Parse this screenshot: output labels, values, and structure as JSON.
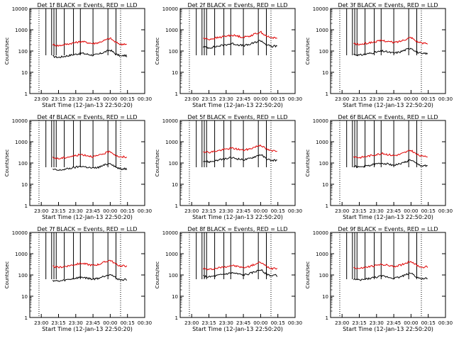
{
  "figure": {
    "description_time_label": "Start Time (12-Jan-13 22:50:20)"
  },
  "chart_data": [
    {
      "type": "line",
      "title": "Det 1f BLACK = Events, RED = LLD",
      "ylabel": "Counts/sec",
      "xlabel": "Start Time (12-Jan-13 22:50:20)",
      "yscale": "log",
      "ylim": [
        1,
        10000
      ],
      "xlim": [
        "22:50",
        "00:30"
      ],
      "xticks": [
        "23:00",
        "23:15",
        "23:30",
        "23:45",
        "00:00",
        "00:15",
        "00:30"
      ],
      "yticks": [
        "1",
        "10",
        "100",
        "1000",
        "10000"
      ],
      "series": [
        {
          "name": "Events",
          "color": "#000000",
          "shift": -0.55
        },
        {
          "name": "LLD",
          "color": "#e00000",
          "shift": 0.0
        }
      ]
    },
    {
      "type": "line",
      "title": "Det 2f BLACK = Events, RED = LLD",
      "ylabel": "Counts/sec",
      "xlabel": "Start Time (12-Jan-13 22:50:20)",
      "yscale": "log",
      "ylim": [
        1,
        10000
      ],
      "xlim": [
        "22:50",
        "00:30"
      ],
      "xticks": [
        "23:00",
        "23:15",
        "23:30",
        "23:45",
        "00:00",
        "00:15",
        "00:30"
      ],
      "yticks": [
        "1",
        "10",
        "100",
        "1000",
        "10000"
      ],
      "series": [
        {
          "name": "Events",
          "color": "#000000",
          "shift": -0.1
        },
        {
          "name": "LLD",
          "color": "#e00000",
          "shift": 0.3
        }
      ]
    },
    {
      "type": "line",
      "title": "Det 3f BLACK = Events, RED = LLD",
      "ylabel": "Counts/sec",
      "xlabel": "Start Time (12-Jan-13 22:50:20)",
      "yscale": "log",
      "ylim": [
        1,
        10000
      ],
      "xlim": [
        "22:50",
        "00:30"
      ],
      "xticks": [
        "23:00",
        "23:15",
        "23:30",
        "23:45",
        "00:00",
        "00:15",
        "00:30"
      ],
      "yticks": [
        "1",
        "10",
        "100",
        "1000",
        "10000"
      ],
      "series": [
        {
          "name": "Events",
          "color": "#000000",
          "shift": -0.45
        },
        {
          "name": "LLD",
          "color": "#e00000",
          "shift": 0.05
        }
      ]
    },
    {
      "type": "line",
      "title": "Det 4f BLACK = Events, RED = LLD",
      "ylabel": "Counts/sec",
      "xlabel": "Start Time (12-Jan-13 22:50:20)",
      "yscale": "log",
      "ylim": [
        1,
        10000
      ],
      "xlim": [
        "22:50",
        "00:30"
      ],
      "xticks": [
        "23:00",
        "23:15",
        "23:30",
        "23:45",
        "00:00",
        "00:15",
        "00:30"
      ],
      "yticks": [
        "1",
        "10",
        "100",
        "1000",
        "10000"
      ],
      "series": [
        {
          "name": "Events",
          "color": "#000000",
          "shift": -0.6
        },
        {
          "name": "LLD",
          "color": "#e00000",
          "shift": -0.05
        }
      ]
    },
    {
      "type": "line",
      "title": "Det 5f BLACK = Events, RED = LLD",
      "ylabel": "Counts/sec",
      "xlabel": "Start Time (12-Jan-13 22:50:20)",
      "yscale": "log",
      "ylim": [
        1,
        10000
      ],
      "xlim": [
        "22:50",
        "00:30"
      ],
      "xticks": [
        "23:00",
        "23:15",
        "23:30",
        "23:45",
        "00:00",
        "00:15",
        "00:30"
      ],
      "yticks": [
        "1",
        "10",
        "100",
        "1000",
        "10000"
      ],
      "series": [
        {
          "name": "Events",
          "color": "#000000",
          "shift": -0.2
        },
        {
          "name": "LLD",
          "color": "#e00000",
          "shift": 0.25
        }
      ]
    },
    {
      "type": "line",
      "title": "Det 6f BLACK = Events, RED = LLD",
      "ylabel": "Counts/sec",
      "xlabel": "Start Time (12-Jan-13 22:50:20)",
      "yscale": "log",
      "ylim": [
        1,
        10000
      ],
      "xlim": [
        "22:50",
        "00:30"
      ],
      "xticks": [
        "23:00",
        "23:15",
        "23:30",
        "23:45",
        "00:00",
        "00:15",
        "00:30"
      ],
      "yticks": [
        "1",
        "10",
        "100",
        "1000",
        "10000"
      ],
      "series": [
        {
          "name": "Events",
          "color": "#000000",
          "shift": -0.45
        },
        {
          "name": "LLD",
          "color": "#e00000",
          "shift": 0.0
        }
      ]
    },
    {
      "type": "line",
      "title": "Det 7f BLACK = Events, RED = LLD",
      "ylabel": "Counts/sec",
      "xlabel": "Start Time (12-Jan-13 22:50:20)",
      "yscale": "log",
      "ylim": [
        1,
        10000
      ],
      "xlim": [
        "22:50",
        "00:30"
      ],
      "xticks": [
        "23:00",
        "23:15",
        "23:30",
        "23:45",
        "00:00",
        "00:15",
        "00:30"
      ],
      "yticks": [
        "1",
        "10",
        "100",
        "1000",
        "10000"
      ],
      "series": [
        {
          "name": "Events",
          "color": "#000000",
          "shift": -0.55
        },
        {
          "name": "LLD",
          "color": "#e00000",
          "shift": 0.1
        }
      ]
    },
    {
      "type": "line",
      "title": "Det 8f BLACK = Events, RED = LLD",
      "ylabel": "Counts/sec",
      "xlabel": "Start Time (12-Jan-13 22:50:20)",
      "yscale": "log",
      "ylim": [
        1,
        10000
      ],
      "xlim": [
        "22:50",
        "00:30"
      ],
      "xticks": [
        "23:00",
        "23:15",
        "23:30",
        "23:45",
        "00:00",
        "00:15",
        "00:30"
      ],
      "yticks": [
        "1",
        "10",
        "100",
        "1000",
        "10000"
      ],
      "series": [
        {
          "name": "Events",
          "color": "#000000",
          "shift": -0.35
        },
        {
          "name": "LLD",
          "color": "#e00000",
          "shift": 0.0
        }
      ]
    },
    {
      "type": "line",
      "title": "Det 9f BLACK = Events, RED = LLD",
      "ylabel": "Counts/sec",
      "xlabel": "Start Time (12-Jan-13 22:50:20)",
      "yscale": "log",
      "ylim": [
        1,
        10000
      ],
      "xlim": [
        "22:50",
        "00:30"
      ],
      "xticks": [
        "23:00",
        "23:15",
        "23:30",
        "23:45",
        "00:00",
        "00:15",
        "00:30"
      ],
      "yticks": [
        "1",
        "10",
        "100",
        "1000",
        "10000"
      ],
      "series": [
        {
          "name": "Events",
          "color": "#000000",
          "shift": -0.5
        },
        {
          "name": "LLD",
          "color": "#e00000",
          "shift": 0.05
        }
      ]
    }
  ],
  "base_profile": {
    "comment_free": true,
    "minutes_from_2250": [
      20,
      25,
      30,
      35,
      40,
      45,
      50,
      55,
      60,
      65,
      70,
      75,
      80,
      82,
      85
    ],
    "log10_counts_lld": [
      2.3,
      2.25,
      2.3,
      2.35,
      2.4,
      2.45,
      2.4,
      2.35,
      2.4,
      2.5,
      2.6,
      2.4,
      2.3,
      2.35,
      2.3
    ]
  },
  "vertical_lines": {
    "solid_minutes": [
      14,
      19,
      21,
      23,
      30,
      38,
      44,
      55,
      68,
      75
    ],
    "dotted_minutes": [
      8,
      79
    ]
  }
}
